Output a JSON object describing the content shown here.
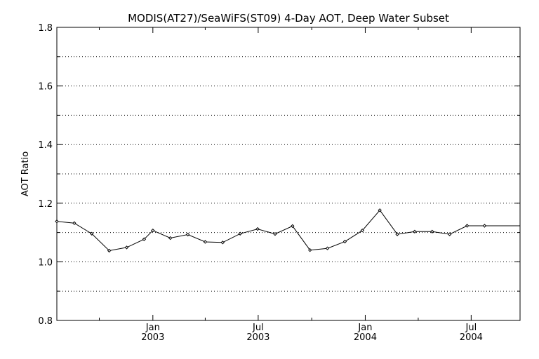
{
  "chart_data": {
    "type": "line",
    "title": "MODIS(AT27)/SeaWiFS(ST09) 4-Day AOT, Deep Water Subset",
    "xlabel": "",
    "ylabel": "AOT Ratio",
    "ylim": [
      0.8,
      1.8
    ],
    "xlim": [
      "2002-07-20",
      "2004-09-23"
    ],
    "y_ticks": [
      "0.8",
      "1.0",
      "1.2",
      "1.4",
      "1.6",
      "1.8"
    ],
    "y_minor_ticks": [
      0.9,
      1.1,
      1.3,
      1.5,
      1.7
    ],
    "x_major_ticks": [
      {
        "date": "2003-01-01",
        "label": "Jan",
        "year": "2003"
      },
      {
        "date": "2003-07-01",
        "label": "Jul",
        "year": "2003"
      },
      {
        "date": "2004-01-01",
        "label": "Jan",
        "year": "2004"
      },
      {
        "date": "2004-07-01",
        "label": "Jul",
        "year": "2004"
      }
    ],
    "x_minor_ticks": [
      "2002-10-01",
      "2003-04-01",
      "2003-10-01",
      "2004-04-01"
    ],
    "grid": "horizontal dotted",
    "series": [
      {
        "x": [
          "2002-07-20",
          "2002-08-19",
          "2002-09-18",
          "2002-10-18",
          "2002-11-17",
          "2002-12-17",
          "2003-01-01",
          "2003-01-31",
          "2003-03-02",
          "2003-04-01",
          "2003-05-01",
          "2003-05-31",
          "2003-06-30",
          "2003-07-30",
          "2003-08-29",
          "2003-09-28",
          "2003-10-28",
          "2003-11-27",
          "2003-12-27",
          "2004-01-26",
          "2004-02-25",
          "2004-03-26",
          "2004-04-25",
          "2004-05-25",
          "2004-06-24",
          "2004-07-24",
          "2004-09-23"
        ],
        "values": [
          1.138,
          1.132,
          1.096,
          1.038,
          1.049,
          1.077,
          1.107,
          1.081,
          1.093,
          1.068,
          1.066,
          1.096,
          1.112,
          1.095,
          1.122,
          1.04,
          1.046,
          1.069,
          1.107,
          1.176,
          1.094,
          1.103,
          1.103,
          1.094,
          1.123,
          1.123,
          1.123
        ]
      }
    ]
  }
}
